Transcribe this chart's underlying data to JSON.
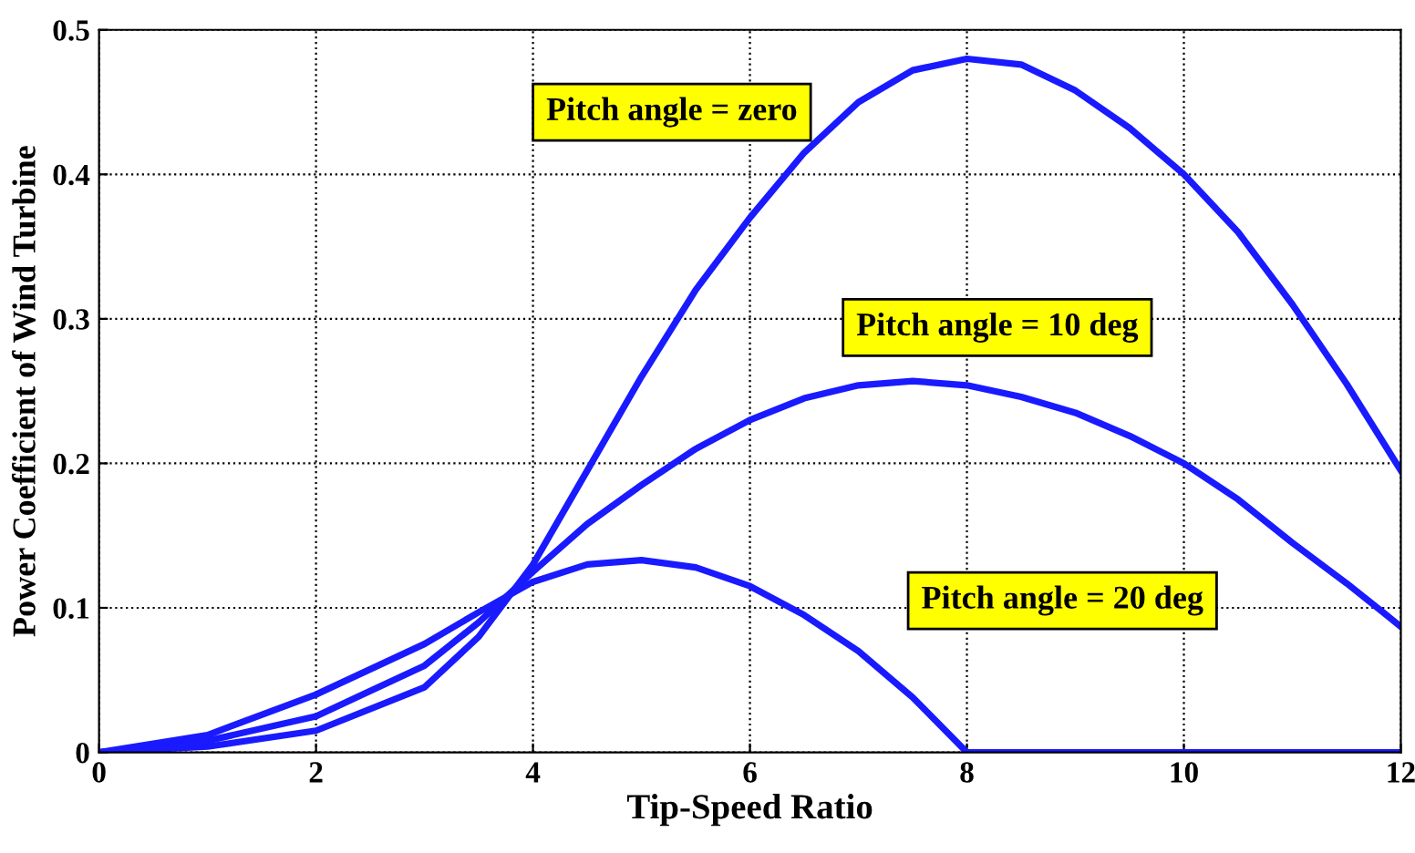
{
  "chart_data": {
    "type": "line",
    "xlabel": "Tip-Speed Ratio",
    "ylabel": "Power Coefficient of Wind Turbine",
    "xlim": [
      0,
      12
    ],
    "ylim": [
      0,
      0.5
    ],
    "xticks": [
      0,
      2,
      4,
      6,
      8,
      10,
      12
    ],
    "yticks": [
      0,
      0.1,
      0.2,
      0.3,
      0.4,
      0.5
    ],
    "grid": true,
    "line_style": "solid",
    "series": [
      {
        "color": "#1a1aff",
        "x": [
          0,
          1,
          2,
          3,
          3.5,
          4,
          4.5,
          5,
          5.5,
          6,
          6.5,
          7,
          7.5,
          8,
          8.5,
          9,
          9.5,
          10,
          10.5,
          11,
          11.5,
          12
        ],
        "values": [
          0,
          0.004,
          0.015,
          0.045,
          0.08,
          0.13,
          0.195,
          0.26,
          0.32,
          0.37,
          0.415,
          0.45,
          0.472,
          0.48,
          0.476,
          0.458,
          0.432,
          0.4,
          0.36,
          0.31,
          0.255,
          0.195
        ]
      },
      {
        "color": "#1a1aff",
        "x": [
          0,
          1,
          2,
          3,
          3.5,
          4,
          4.5,
          5,
          5.5,
          6,
          6.5,
          7,
          7.5,
          8,
          8.5,
          9,
          9.5,
          10,
          10.5,
          11,
          11.5,
          12
        ],
        "values": [
          0,
          0.008,
          0.025,
          0.06,
          0.09,
          0.125,
          0.158,
          0.185,
          0.21,
          0.23,
          0.245,
          0.254,
          0.257,
          0.254,
          0.246,
          0.235,
          0.219,
          0.2,
          0.175,
          0.145,
          0.117,
          0.087
        ]
      },
      {
        "color": "#1a1aff",
        "x": [
          0,
          1,
          2,
          3,
          3.5,
          4,
          4.5,
          5,
          5.5,
          6,
          6.5,
          7,
          7.5,
          8,
          9,
          10,
          11,
          12
        ],
        "values": [
          0,
          0.012,
          0.04,
          0.075,
          0.097,
          0.118,
          0.13,
          0.133,
          0.128,
          0.115,
          0.095,
          0.07,
          0.038,
          0,
          0,
          0,
          0,
          0
        ]
      }
    ],
    "annotations": [
      "Pitch angle = zero",
      "Pitch angle = 10 deg",
      "Pitch angle = 20 deg"
    ]
  }
}
